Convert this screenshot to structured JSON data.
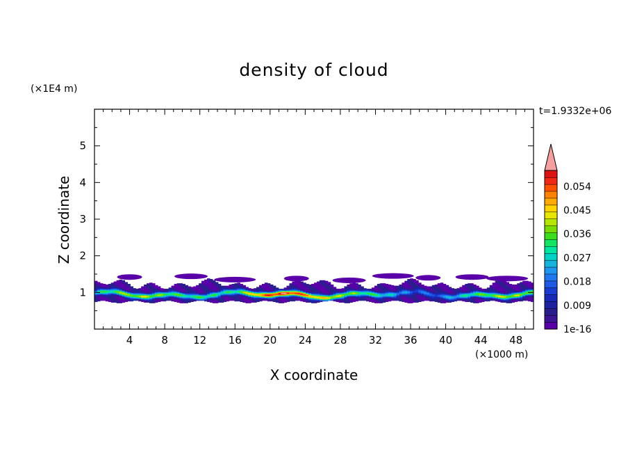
{
  "chart_data": {
    "type": "heatmap",
    "title": "density of cloud",
    "xlabel": "X coordinate",
    "ylabel": "Z coordinate",
    "x_unit": "(×1000 m)",
    "y_unit": "(×1E4 m)",
    "time_label": "t=1.9332e+06",
    "xlim": [
      0,
      50
    ],
    "ylim": [
      0,
      6
    ],
    "x_ticks": [
      "4",
      "8",
      "12",
      "16",
      "20",
      "24",
      "28",
      "32",
      "36",
      "40",
      "44",
      "48"
    ],
    "y_ticks": [
      "1",
      "2",
      "3",
      "4",
      "5"
    ],
    "colorbar": {
      "labels": [
        "1e-16",
        "0.009",
        "0.018",
        "0.027",
        "0.036",
        "0.045",
        "0.054"
      ],
      "min": 0,
      "max": 0.06,
      "levels": 20,
      "extend_max": true,
      "colors": [
        "#5a00a8",
        "#3c1496",
        "#2a1e8c",
        "#1e22a0",
        "#1a28b8",
        "#1a3cd2",
        "#1e5ae6",
        "#2078f0",
        "#1e96f0",
        "#14b4dc",
        "#00d2c8",
        "#00e6a0",
        "#14e664",
        "#3cdc1e",
        "#78dc00",
        "#b4e600",
        "#e6e600",
        "#ffd200",
        "#ffaa00",
        "#ff8200",
        "#ff5000",
        "#f02814",
        "#dc1414"
      ],
      "over_color": "#f4a0a0"
    },
    "cloud_layer": {
      "z_bottom": 0.75,
      "z_top": 1.45,
      "z_core": 0.95,
      "max_density_x_range": [
        16,
        24
      ],
      "peak_density": 0.054
    }
  }
}
